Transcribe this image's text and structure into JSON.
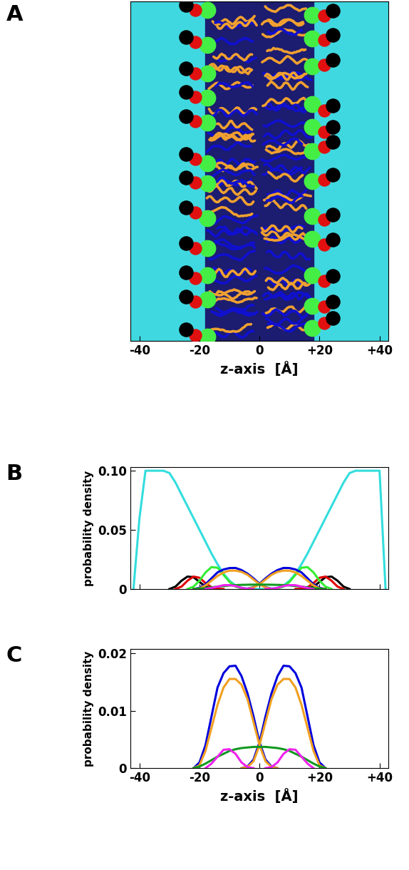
{
  "chart_data": [
    {
      "type": "image",
      "title": "A",
      "xlabel": "z-axis  [Å]",
      "xlim": [
        -43,
        43
      ],
      "xticks": [
        -40,
        -20,
        0,
        {
          "value": 20,
          "label": "+20"
        },
        {
          "value": 40,
          "label": "+40"
        }
      ],
      "tick_labels": "x"
    },
    {
      "type": "line",
      "title": "B",
      "ylabel": "probability density",
      "xlim": [
        -43,
        43
      ],
      "xticks": [
        -40,
        -20,
        0,
        {
          "value": 20,
          "label": "+20"
        },
        {
          "value": 40,
          "label": "+40"
        }
      ],
      "ylim": [
        0,
        0.103
      ],
      "yticks": [
        0,
        0.05,
        {
          "value": 0.1,
          "label": "0.10"
        }
      ],
      "tick_labels": "y",
      "x": [
        -42,
        -40,
        -38,
        -36,
        -34,
        -32,
        -30,
        -28,
        -26,
        -24,
        -22,
        -20,
        -18,
        -16,
        -14,
        -12,
        -10,
        -8,
        -6,
        -4,
        -2,
        0,
        2,
        4,
        6,
        8,
        10,
        12,
        14,
        16,
        18,
        20,
        22,
        24,
        26,
        28,
        30,
        32,
        34,
        36,
        38,
        40,
        42
      ],
      "series": [
        {
          "color": "#33dddd",
          "values": [
            0,
            0.06,
            0.1,
            0.1,
            0.1,
            0.1,
            0.098,
            0.09,
            0.08,
            0.07,
            0.06,
            0.05,
            0.04,
            0.03,
            0.021,
            0.013,
            0.007,
            0.003,
            0.001,
            0.0003,
            0,
            0,
            0,
            0.0003,
            0.001,
            0.003,
            0.007,
            0.013,
            0.021,
            0.03,
            0.04,
            0.05,
            0.06,
            0.07,
            0.08,
            0.09,
            0.098,
            0.1,
            0.1,
            0.1,
            0.1,
            0.1,
            0
          ]
        },
        {
          "color": "#000000",
          "values": [
            null,
            null,
            null,
            null,
            null,
            null,
            0,
            0.002,
            0.007,
            0.0105,
            0.01,
            0.006,
            0.002,
            0.0005,
            0,
            null,
            null,
            null,
            null,
            null,
            null,
            null,
            null,
            null,
            null,
            null,
            null,
            null,
            0,
            0.0005,
            0.002,
            0.006,
            0.01,
            0.0105,
            0.007,
            0.002,
            0,
            null,
            null,
            null,
            null,
            null,
            null
          ]
        },
        {
          "color": "#e00000",
          "values": [
            null,
            null,
            null,
            null,
            null,
            null,
            null,
            0,
            0.002,
            0.007,
            0.0105,
            0.0095,
            0.005,
            0.0015,
            0.0002,
            0,
            null,
            null,
            null,
            null,
            null,
            null,
            null,
            null,
            null,
            null,
            null,
            0,
            0.0002,
            0.0015,
            0.005,
            0.0095,
            0.0105,
            0.007,
            0.002,
            0,
            null,
            null,
            null,
            null,
            null,
            null,
            null
          ]
        },
        {
          "color": "#33ee33",
          "values": [
            null,
            null,
            null,
            null,
            null,
            null,
            null,
            null,
            null,
            0,
            0.002,
            0.007,
            0.014,
            0.0185,
            0.018,
            0.012,
            0.006,
            0.002,
            0.0005,
            0,
            null,
            null,
            null,
            0,
            0.0005,
            0.002,
            0.006,
            0.012,
            0.018,
            0.0185,
            0.014,
            0.007,
            0.002,
            0,
            null,
            null,
            null,
            null,
            null,
            null,
            null,
            null,
            null
          ]
        },
        {
          "color": "#0000dd",
          "values": [
            null,
            null,
            null,
            null,
            null,
            null,
            null,
            null,
            null,
            null,
            0,
            0.001,
            0.004,
            0.009,
            0.014,
            0.0165,
            0.0177,
            0.0178,
            0.016,
            0.013,
            0.009,
            0.0045,
            0.0015,
            0.0003,
            0,
            null,
            null,
            null,
            null,
            null,
            null,
            null,
            null,
            null,
            null,
            null,
            null,
            null,
            null,
            null,
            null,
            null,
            null
          ]
        },
        {
          "color": "#0000dd",
          "values": [
            null,
            null,
            null,
            null,
            null,
            null,
            null,
            null,
            null,
            null,
            null,
            null,
            null,
            null,
            null,
            null,
            null,
            null,
            0,
            0.0003,
            0.0015,
            0.0045,
            0.009,
            0.013,
            0.016,
            0.0178,
            0.0177,
            0.0165,
            0.014,
            0.009,
            0.004,
            0.001,
            0,
            null,
            null,
            null,
            null,
            null,
            null,
            null,
            null,
            null,
            null
          ]
        },
        {
          "color": "#f0a020",
          "values": [
            null,
            null,
            null,
            null,
            null,
            null,
            null,
            null,
            null,
            null,
            0,
            0.0005,
            0.003,
            0.007,
            0.011,
            0.014,
            0.0155,
            0.0155,
            0.0145,
            0.012,
            0.008,
            0.004,
            0.0012,
            0.0002,
            0,
            null,
            null,
            null,
            null,
            null,
            null,
            null,
            null,
            null,
            null,
            null,
            null,
            null,
            null,
            null,
            null,
            null,
            null
          ]
        },
        {
          "color": "#f0a020",
          "values": [
            null,
            null,
            null,
            null,
            null,
            null,
            null,
            null,
            null,
            null,
            null,
            null,
            null,
            null,
            null,
            null,
            null,
            null,
            0,
            0.0002,
            0.0012,
            0.004,
            0.008,
            0.012,
            0.0145,
            0.0155,
            0.0155,
            0.014,
            0.011,
            0.007,
            0.003,
            0.0005,
            0,
            null,
            null,
            null,
            null,
            null,
            null,
            null,
            null,
            null,
            null
          ]
        },
        {
          "color": "#11991f",
          "values": [
            null,
            null,
            null,
            null,
            null,
            null,
            null,
            null,
            null,
            null,
            0,
            0.0003,
            0.0008,
            0.0014,
            0.002,
            0.0025,
            0.003,
            0.0033,
            0.0035,
            0.0036,
            0.0037,
            0.0037,
            0.0037,
            0.0036,
            0.0035,
            0.0033,
            0.003,
            0.0025,
            0.002,
            0.0014,
            0.0008,
            0.0003,
            0,
            null,
            null,
            null,
            null,
            null,
            null,
            null,
            null,
            null,
            null
          ]
        },
        {
          "color": "#ee22ee",
          "values": [
            null,
            null,
            null,
            null,
            null,
            null,
            null,
            null,
            null,
            null,
            null,
            null,
            0,
            0.0008,
            0.002,
            0.0032,
            0.0033,
            0.0025,
            0.001,
            0.0002,
            0,
            null,
            0,
            0.0002,
            0.001,
            0.0025,
            0.0033,
            0.0032,
            0.002,
            0.0008,
            0,
            null,
            null,
            null,
            null,
            null,
            null,
            null,
            null,
            null,
            null,
            null,
            null
          ]
        }
      ]
    },
    {
      "type": "line",
      "title": "C",
      "ylabel": "probability density",
      "xlabel": "z-axis  [Å]",
      "xlim": [
        -43,
        43
      ],
      "xticks": [
        -40,
        -20,
        0,
        {
          "value": 20,
          "label": "+20"
        },
        {
          "value": 40,
          "label": "+40"
        }
      ],
      "ylim": [
        0,
        0.0207
      ],
      "yticks": [
        0,
        0.01,
        0.02
      ],
      "x": [
        -42,
        -40,
        -38,
        -36,
        -34,
        -32,
        -30,
        -28,
        -26,
        -24,
        -22,
        -20,
        -18,
        -16,
        -14,
        -12,
        -10,
        -8,
        -6,
        -4,
        -2,
        0,
        2,
        4,
        6,
        8,
        10,
        12,
        14,
        16,
        18,
        20,
        22,
        24,
        26,
        28,
        30,
        32,
        34,
        36,
        38,
        40,
        42
      ],
      "series": [
        {
          "color": "#0000dd",
          "values": [
            null,
            null,
            null,
            null,
            null,
            null,
            null,
            null,
            null,
            null,
            0,
            0.001,
            0.004,
            0.009,
            0.014,
            0.0165,
            0.0177,
            0.0178,
            0.016,
            0.013,
            0.009,
            0.0045,
            0.0015,
            0.0003,
            0,
            null,
            null,
            null,
            null,
            null,
            null,
            null,
            null,
            null,
            null,
            null,
            null,
            null,
            null,
            null,
            null,
            null,
            null
          ]
        },
        {
          "color": "#0000dd",
          "values": [
            null,
            null,
            null,
            null,
            null,
            null,
            null,
            null,
            null,
            null,
            null,
            null,
            null,
            null,
            null,
            null,
            null,
            null,
            0,
            0.0003,
            0.0015,
            0.0045,
            0.009,
            0.013,
            0.016,
            0.0178,
            0.0177,
            0.0165,
            0.014,
            0.009,
            0.004,
            0.001,
            0,
            null,
            null,
            null,
            null,
            null,
            null,
            null,
            null,
            null,
            null
          ]
        },
        {
          "color": "#f0a020",
          "values": [
            null,
            null,
            null,
            null,
            null,
            null,
            null,
            null,
            null,
            null,
            0,
            0.0005,
            0.003,
            0.007,
            0.011,
            0.014,
            0.0155,
            0.0155,
            0.0145,
            0.012,
            0.008,
            0.004,
            0.0012,
            0.0002,
            0,
            null,
            null,
            null,
            null,
            null,
            null,
            null,
            null,
            null,
            null,
            null,
            null,
            null,
            null,
            null,
            null,
            null,
            null
          ]
        },
        {
          "color": "#f0a020",
          "values": [
            null,
            null,
            null,
            null,
            null,
            null,
            null,
            null,
            null,
            null,
            null,
            null,
            null,
            null,
            null,
            null,
            null,
            null,
            0,
            0.0002,
            0.0012,
            0.004,
            0.008,
            0.012,
            0.0145,
            0.0155,
            0.0155,
            0.014,
            0.011,
            0.007,
            0.003,
            0.0005,
            0,
            null,
            null,
            null,
            null,
            null,
            null,
            null,
            null,
            null,
            null
          ]
        },
        {
          "color": "#11991f",
          "values": [
            null,
            null,
            null,
            null,
            null,
            null,
            null,
            null,
            null,
            null,
            0,
            0.0003,
            0.0008,
            0.0014,
            0.002,
            0.0025,
            0.003,
            0.0033,
            0.0035,
            0.0036,
            0.0037,
            0.0037,
            0.0037,
            0.0036,
            0.0035,
            0.0033,
            0.003,
            0.0025,
            0.002,
            0.0014,
            0.0008,
            0.0003,
            0,
            null,
            null,
            null,
            null,
            null,
            null,
            null,
            null,
            null,
            null
          ]
        },
        {
          "color": "#ee22ee",
          "values": [
            null,
            null,
            null,
            null,
            null,
            null,
            null,
            null,
            null,
            null,
            null,
            null,
            0,
            0.0008,
            0.002,
            0.0032,
            0.0033,
            0.0025,
            0.001,
            0.0002,
            0,
            null,
            0,
            0.0002,
            0.001,
            0.0025,
            0.0033,
            0.0032,
            0.002,
            0.0008,
            0,
            null,
            null,
            null,
            null,
            null,
            null,
            null,
            null,
            null,
            null,
            null,
            null
          ]
        }
      ]
    }
  ]
}
